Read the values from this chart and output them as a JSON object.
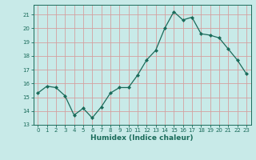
{
  "x": [
    0,
    1,
    2,
    3,
    4,
    5,
    6,
    7,
    8,
    9,
    10,
    11,
    12,
    13,
    14,
    15,
    16,
    17,
    18,
    19,
    20,
    21,
    22,
    23
  ],
  "y": [
    15.3,
    15.8,
    15.7,
    15.1,
    13.7,
    14.2,
    13.5,
    14.3,
    15.3,
    15.7,
    15.7,
    16.6,
    17.7,
    18.4,
    20.0,
    21.2,
    20.6,
    20.8,
    19.6,
    19.5,
    19.3,
    18.5,
    17.7,
    16.7
  ],
  "xlabel": "Humidex (Indice chaleur)",
  "xlim": [
    -0.5,
    23.5
  ],
  "ylim": [
    13,
    21.7
  ],
  "yticks": [
    13,
    14,
    15,
    16,
    17,
    18,
    19,
    20,
    21
  ],
  "xticks": [
    0,
    1,
    2,
    3,
    4,
    5,
    6,
    7,
    8,
    9,
    10,
    11,
    12,
    13,
    14,
    15,
    16,
    17,
    18,
    19,
    20,
    21,
    22,
    23
  ],
  "line_color": "#1a6b5a",
  "marker_color": "#1a6b5a",
  "bg_color": "#c8eae8",
  "grid_color": "#d4a0a0",
  "font_color": "#1a6b5a",
  "tick_fontsize": 5.0,
  "xlabel_fontsize": 6.5,
  "marker_size": 2.0,
  "line_width": 0.9
}
